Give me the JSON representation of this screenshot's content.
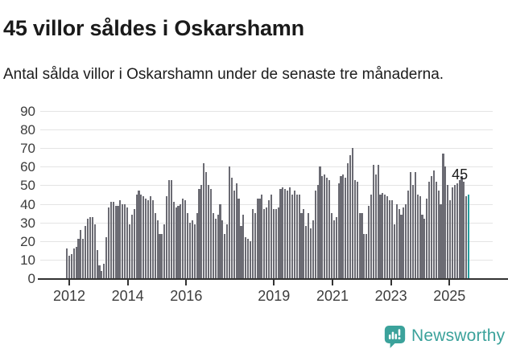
{
  "header": {
    "title": "45 villor såldes i Oskarshamn",
    "subtitle": "Antal sålda villor i Oskarshamn under de senaste tre månaderna."
  },
  "chart_data": {
    "type": "bar",
    "title": "45 villor såldes i Oskarshamn",
    "xlabel": "",
    "ylabel": "",
    "ylim": [
      0,
      90
    ],
    "y_ticks": [
      0,
      10,
      20,
      30,
      40,
      50,
      60,
      70,
      80,
      90
    ],
    "grid": "horizontal",
    "legend": "none",
    "x_range_years": [
      2012,
      2025
    ],
    "x_tick_labels": [
      "2012",
      "2014",
      "2016",
      "2019",
      "2021",
      "2023",
      "2025"
    ],
    "x_tick_years": [
      2012,
      2014,
      2016,
      2019,
      2021,
      2023,
      2025
    ],
    "series_note": "monthly rolling 3-month sales counts, early 2012 to latest period",
    "values": [
      16,
      12,
      13,
      16,
      17,
      21,
      26,
      21,
      28,
      32,
      33,
      33,
      29,
      15,
      7,
      4,
      8,
      22,
      38,
      41,
      41,
      39,
      39,
      42,
      40,
      40,
      38,
      29,
      34,
      37,
      45,
      47,
      45,
      44,
      43,
      42,
      44,
      42,
      35,
      31,
      24,
      24,
      29,
      44,
      53,
      53,
      41,
      38,
      39,
      40,
      43,
      42,
      35,
      30,
      31,
      29,
      35,
      48,
      50,
      62,
      57,
      50,
      48,
      35,
      32,
      34,
      40,
      31,
      24,
      29,
      60,
      54,
      47,
      51,
      43,
      28,
      34,
      22,
      21,
      20,
      37,
      35,
      43,
      43,
      45,
      37,
      38,
      42,
      45,
      37,
      37,
      38,
      48,
      49,
      48,
      47,
      49,
      45,
      47,
      45,
      45,
      35,
      37,
      28,
      35,
      27,
      31,
      47,
      50,
      60,
      55,
      56,
      54,
      53,
      35,
      31,
      33,
      51,
      55,
      56,
      54,
      62,
      66,
      70,
      53,
      52,
      35,
      35,
      24,
      24,
      39,
      45,
      61,
      56,
      61,
      45,
      46,
      45,
      44,
      42,
      42,
      29,
      40,
      37,
      34,
      38,
      40,
      47,
      57,
      50,
      57,
      45,
      44,
      34,
      32,
      43,
      52,
      55,
      58,
      52,
      47,
      40,
      67,
      60,
      50,
      42,
      49,
      50,
      51,
      53,
      55,
      52,
      44,
      45
    ],
    "highlight_last": true,
    "last_value_label": "45",
    "colors": {
      "bar": "#6b6b73",
      "highlight": "#269e9e",
      "grid": "#e4e4e4",
      "axis": "#333333",
      "tick_text": "#3d3d3d"
    }
  },
  "footer": {
    "brand": "Newsworthy",
    "brand_color": "#3ba29b",
    "logo_icon": "newsworthy-speech-bubble-chart-icon"
  }
}
